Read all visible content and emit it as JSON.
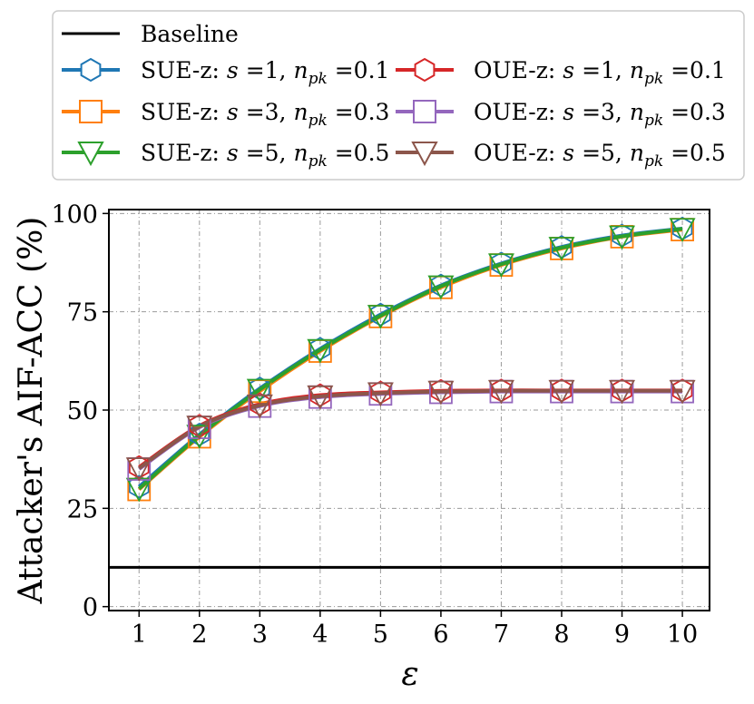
{
  "chart_data": {
    "type": "line",
    "title": "",
    "xlabel": "ε",
    "ylabel": "Attacker's AIF-ACC (%)",
    "x": [
      1,
      2,
      3,
      4,
      5,
      6,
      7,
      8,
      9,
      10
    ],
    "x_ticks": [
      "1",
      "2",
      "3",
      "4",
      "5",
      "6",
      "7",
      "8",
      "9",
      "10"
    ],
    "y_ticks": [
      "0",
      "25",
      "50",
      "75",
      "100"
    ],
    "xlim": [
      0.5,
      10.45
    ],
    "ylim": [
      -1,
      101
    ],
    "grid": true,
    "legend_position": "top (above plot)",
    "baseline": {
      "name": "Baseline",
      "value": 10,
      "color": "#000000"
    },
    "series": [
      {
        "name": "SUE-z: s =1, n_pk =0.1",
        "color": "#1f77b4",
        "marker": "hexagon",
        "values": [
          30.5,
          43.8,
          55.5,
          65.6,
          74.3,
          81.7,
          87.3,
          91.5,
          94.4,
          96.2
        ]
      },
      {
        "name": "SUE-z: s =3, n_pk =0.3",
        "color": "#ff7f0e",
        "marker": "square",
        "values": [
          29.8,
          43.2,
          54.8,
          65.0,
          73.8,
          81.2,
          86.9,
          91.1,
          94.1,
          95.9
        ]
      },
      {
        "name": "SUE-z: s =5, n_pk =0.5",
        "color": "#2ca02c",
        "marker": "triangle-down",
        "values": [
          30.0,
          43.5,
          55.2,
          65.3,
          74.0,
          81.5,
          87.1,
          91.3,
          94.2,
          96.1
        ]
      },
      {
        "name": "OUE-z: s =1, n_pk =0.1",
        "color": "#d62728",
        "marker": "hexagon",
        "values": [
          35.5,
          46.0,
          51.5,
          53.8,
          54.5,
          54.9,
          55.0,
          55.0,
          55.0,
          55.0
        ]
      },
      {
        "name": "OUE-z: s =3, n_pk =0.3",
        "color": "#9467bd",
        "marker": "square",
        "values": [
          35.0,
          45.6,
          51.0,
          53.3,
          54.1,
          54.5,
          54.7,
          54.7,
          54.7,
          54.7
        ]
      },
      {
        "name": "OUE-z: s =5, n_pk =0.5",
        "color": "#8c564b",
        "marker": "triangle-down",
        "values": [
          35.2,
          45.8,
          51.2,
          53.5,
          54.3,
          54.7,
          54.9,
          54.9,
          54.9,
          54.9
        ]
      }
    ],
    "legend_labels": {
      "baseline": "Baseline",
      "s1": {
        "prefix": "SUE-z:",
        "s": "=1,",
        "npk": "=0.1"
      },
      "s2": {
        "prefix": "SUE-z:",
        "s": "=3,",
        "npk": "=0.3"
      },
      "s3": {
        "prefix": "SUE-z:",
        "s": "=5,",
        "npk": "=0.5"
      },
      "o1": {
        "prefix": "OUE-z:",
        "s": "=1,",
        "npk": "=0.1"
      },
      "o2": {
        "prefix": "OUE-z:",
        "s": "=3,",
        "npk": "=0.3"
      },
      "o3": {
        "prefix": "OUE-z:",
        "s": "=5,",
        "npk": "=0.5"
      }
    }
  }
}
